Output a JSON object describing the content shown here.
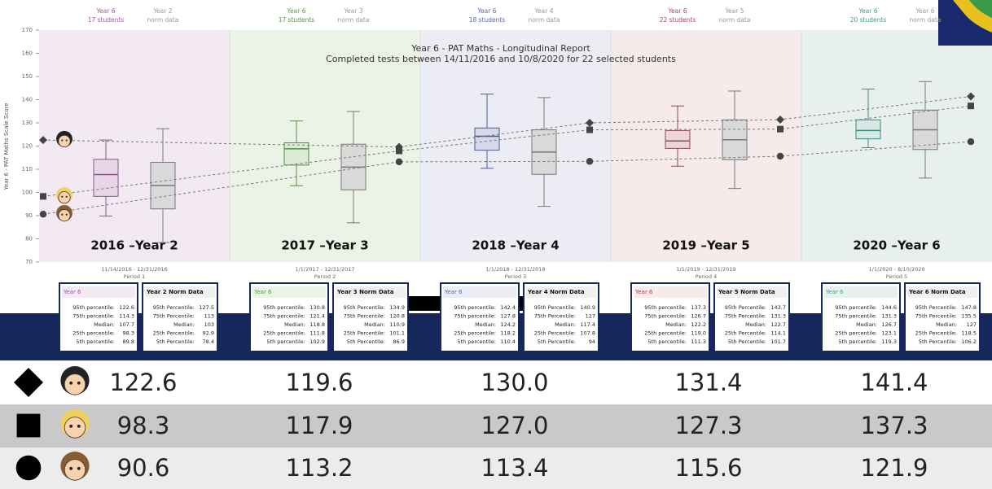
{
  "chart_data": {
    "type": "box",
    "title": "Year 6 - PAT Maths - Longitudinal Report",
    "subtitle": "Completed tests between 14/11/2016 and 10/8/2020 for 22 selected students",
    "y_label": "Year 6 - PAT Maths Scale Score",
    "ylim": [
      70,
      170
    ],
    "yticks": [
      70,
      80,
      90,
      100,
      110,
      120,
      130,
      140,
      150,
      160,
      170
    ],
    "periods": [
      {
        "label": "2016 –Year 2",
        "dates": "11/14/2016 - 12/31/2016",
        "period": "Period 1",
        "bg": "#f3e9f3",
        "color": "#a05a9f",
        "header": [
          "Year 6",
          "17 students"
        ],
        "norm_header": [
          "Year 2",
          "norm data"
        ],
        "boxes": [
          {
            "name": "Year 6",
            "fill": "#e8d5e8",
            "color": "#8a5a8a",
            "stats": [
              122.6,
              114.3,
              107.7,
              98.3,
              89.8
            ],
            "stat_labels": [
              "95th percentile:",
              "75th percentile:",
              "Median:",
              "25th percentile:",
              "5th percentile:"
            ]
          },
          {
            "name": "Year 2 Norm Data",
            "fill": "#d9d9d9",
            "color": "#777777",
            "stats": [
              127.5,
              113,
              103,
              92.9,
              78.4
            ],
            "stat_labels": [
              "95th Percentile:",
              "75th Percentile:",
              "Median:",
              "25th Percentile:",
              "5th Percentile:"
            ]
          }
        ]
      },
      {
        "label": "2017 –Year 3",
        "dates": "1/1/2017 - 12/31/2017",
        "period": "Period 2",
        "bg": "#eaf3e6",
        "color": "#5a9a4a",
        "header": [
          "Year 6",
          "17 students"
        ],
        "norm_header": [
          "Year 3",
          "norm data"
        ],
        "boxes": [
          {
            "name": "Year 6",
            "fill": "#dcebd5",
            "color": "#5a8a4a",
            "stats": [
              130.8,
              121.4,
              118.8,
              111.8,
              102.9
            ],
            "stat_labels": [
              "95th percentile:",
              "75th percentile:",
              "Median:",
              "25th percentile:",
              "5th percentile:"
            ]
          },
          {
            "name": "Year 3 Norm Data",
            "fill": "#d9d9d9",
            "color": "#777777",
            "stats": [
              134.9,
              120.8,
              110.9,
              101.1,
              86.9
            ],
            "stat_labels": [
              "95th Percentile:",
              "75th Percentile:",
              "Median:",
              "25th Percentile:",
              "5th Percentile:"
            ]
          }
        ]
      },
      {
        "label": "2018 –Year 4",
        "dates": "1/1/2018 - 12/31/2018",
        "period": "Period 3",
        "bg": "#ecedf4",
        "color": "#5a6aa0",
        "header": [
          "Year 6",
          "18 students"
        ],
        "norm_header": [
          "Year 4",
          "norm data"
        ],
        "boxes": [
          {
            "name": "Year 6",
            "fill": "#d5d9ea",
            "color": "#4a5a90",
            "stats": [
              142.4,
              127.8,
              124.2,
              118.2,
              110.4
            ],
            "stat_labels": [
              "95th percentile:",
              "75th percentile:",
              "Median:",
              "25th percentile:",
              "5th percentile:"
            ]
          },
          {
            "name": "Year 4 Norm Data",
            "fill": "#d9d9d9",
            "color": "#777777",
            "stats": [
              140.9,
              127,
              117.4,
              107.8,
              94
            ],
            "stat_labels": [
              "95th Percentile:",
              "75th Percentile:",
              "Median:",
              "25th Percentile:",
              "5th Percentile:"
            ]
          }
        ]
      },
      {
        "label": "2019 –Year 5",
        "dates": "1/1/2019 - 12/31/2019",
        "period": "Period 4",
        "bg": "#f6eaea",
        "color": "#a04a5a",
        "header": [
          "Year 6",
          "22 students"
        ],
        "norm_header": [
          "Year 5",
          "norm data"
        ],
        "boxes": [
          {
            "name": "Year 6",
            "fill": "#ecd5d8",
            "color": "#904a5a",
            "stats": [
              137.3,
              126.7,
              122.2,
              119.0,
              111.3
            ],
            "value_labels": [
              "137.3",
              "126.7",
              "122.2",
              "119.0",
              "111.3"
            ],
            "stat_labels": [
              "95th percentile:",
              "75th percentile:",
              "Median:",
              "25th percentile:",
              "5th percentile:"
            ]
          },
          {
            "name": "Year 5 Norm Data",
            "fill": "#d9d9d9",
            "color": "#777777",
            "stats": [
              143.7,
              131.3,
              122.7,
              114.1,
              101.7
            ],
            "stat_labels": [
              "95th Percentile:",
              "75th Percentile:",
              "Median:",
              "25th Percentile:",
              "5th Percentile:"
            ]
          }
        ]
      },
      {
        "label": "2020 –Year 6",
        "dates": "1/1/2020 - 8/10/2020",
        "period": "Period 5",
        "bg": "#e8f0ee",
        "color": "#4a9a8a",
        "header": [
          "Year 6",
          "20 students"
        ],
        "norm_header": [
          "Year 6",
          "norm data"
        ],
        "boxes": [
          {
            "name": "Year 6",
            "fill": "#d5e8e5",
            "color": "#3a8a7a",
            "stats": [
              144.6,
              131.3,
              126.7,
              123.1,
              119.3
            ],
            "stat_labels": [
              "95th percentile:",
              "75th percentile:",
              "Median:",
              "25th percentile:",
              "5th percentile:"
            ]
          },
          {
            "name": "Year 6 Norm Data",
            "fill": "#d9d9d9",
            "color": "#777777",
            "stats": [
              147.8,
              135.5,
              127,
              118.5,
              106.2
            ],
            "stat_labels": [
              "95th Percentile:",
              "75th Percentile:",
              "Median:",
              "25th Percentile:",
              "5th Percentile:"
            ]
          }
        ]
      }
    ],
    "series": [
      {
        "marker": "diamond",
        "color": "#444444",
        "hair": "#222222",
        "values": [
          122.6,
          119.6,
          130.0,
          131.4,
          141.4
        ],
        "value_labels": [
          "122.6",
          "119.6",
          "130.0",
          "131.4",
          "141.4"
        ]
      },
      {
        "marker": "square",
        "color": "#444444",
        "hair": "#f2d060",
        "values": [
          98.3,
          117.9,
          127.0,
          127.3,
          137.3
        ],
        "value_labels": [
          "98.3",
          "117.9",
          "127.0",
          "127.3",
          "137.3"
        ]
      },
      {
        "marker": "circle",
        "color": "#444444",
        "hair": "#8a5a30",
        "values": [
          90.6,
          113.2,
          113.4,
          115.6,
          121.9
        ],
        "value_labels": [
          "90.6",
          "113.2",
          "113.4",
          "115.6",
          "121.9"
        ]
      }
    ]
  }
}
